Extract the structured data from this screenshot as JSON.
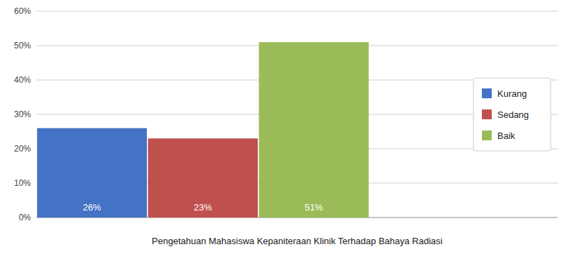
{
  "chart_data": {
    "type": "bar",
    "xlabel": "Pengetahuan Mahasiswa Kepaniteraan Klinik Terhadap Bahaya Radiasi",
    "categories": [
      "Kurang",
      "Sedang",
      "Baik"
    ],
    "values": [
      26,
      23,
      51
    ],
    "value_labels": [
      "26%",
      "23%",
      "51%"
    ],
    "data_labels": true,
    "colors": [
      "#4472C4",
      "#C0504D",
      "#9BBB59"
    ],
    "ylim": [
      0,
      60
    ],
    "yticks": [
      {
        "value": 0,
        "label": "0%"
      },
      {
        "value": 10,
        "label": "10%"
      },
      {
        "value": 20,
        "label": "20%"
      },
      {
        "value": 30,
        "label": "30%"
      },
      {
        "value": 40,
        "label": "40%"
      },
      {
        "value": 50,
        "label": "50%"
      },
      {
        "value": 60,
        "label": "60%"
      }
    ],
    "grid": true,
    "legend": "right",
    "tick_labels": "y"
  }
}
